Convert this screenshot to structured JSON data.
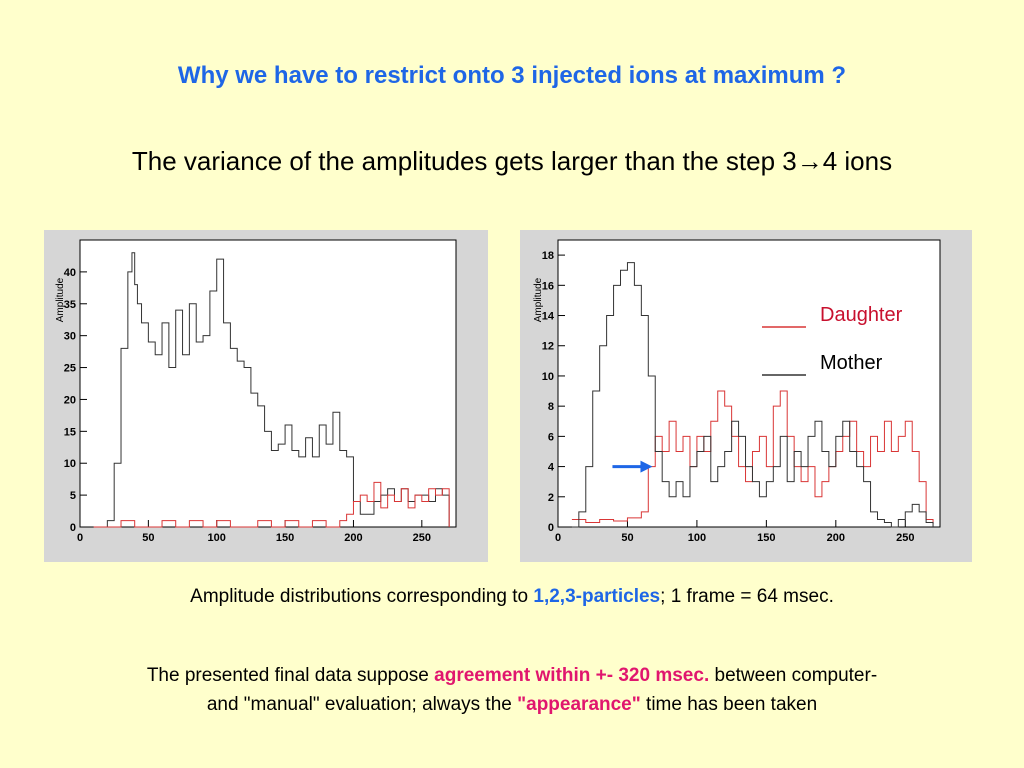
{
  "slide": {
    "title": "Why we have to restrict onto 3 injected ions at maximum ?",
    "subtitle": "The variance of the amplitudes gets larger than the step 3→4 ions",
    "caption": {
      "pre": "Amplitude distributions corresponding to ",
      "highlight": "1,2,3-particles",
      "post": "; 1 frame = 64 msec."
    },
    "note": {
      "line1_pre": "The presented final data  suppose ",
      "line1_highlight": "agreement within +- 320 msec.",
      "line1_post": " between computer-",
      "line2_pre": "and \"manual\" evaluation; always the ",
      "line2_highlight": "\"appearance\"",
      "line2_post": " time has been taken"
    }
  },
  "colors": {
    "background": "#FFFFCC",
    "title": "#1E66E6",
    "accent": "#E0166E",
    "daughter": "#D93636",
    "mother": "#333333",
    "arrow": "#1E66E6"
  },
  "chart_data": [
    {
      "type": "line",
      "ylabel": "Amplitude",
      "xlim": [
        0,
        275
      ],
      "ylim": [
        0,
        45
      ],
      "xticks": [
        0,
        50,
        100,
        150,
        200,
        250
      ],
      "yticks": [
        0,
        5,
        10,
        15,
        20,
        25,
        30,
        35,
        40
      ],
      "series": [
        {
          "color": "#333333",
          "x": [
            10,
            20,
            25,
            30,
            35,
            38,
            40,
            42,
            45,
            50,
            55,
            60,
            65,
            70,
            75,
            80,
            85,
            90,
            95,
            100,
            105,
            110,
            115,
            120,
            125,
            130,
            135,
            140,
            145,
            150,
            155,
            160,
            165,
            170,
            175,
            180,
            185,
            190,
            195,
            200,
            205,
            210,
            215,
            220,
            225,
            230,
            235,
            240,
            245,
            250,
            255,
            260,
            265,
            270
          ],
          "y": [
            0,
            1,
            10,
            28,
            40,
            43,
            38,
            35,
            32,
            29,
            27,
            32,
            25,
            34,
            27,
            35,
            29,
            30,
            37,
            42,
            32,
            28,
            26,
            25,
            21,
            19,
            15,
            12,
            13,
            16,
            12,
            11,
            14,
            11,
            16,
            13,
            18,
            12,
            11,
            4,
            2,
            2,
            4,
            5,
            6,
            4,
            6,
            4,
            5,
            5,
            4,
            6,
            5,
            0
          ]
        },
        {
          "color": "#D93636",
          "x": [
            10,
            20,
            30,
            40,
            50,
            60,
            70,
            80,
            90,
            100,
            110,
            120,
            130,
            140,
            150,
            160,
            170,
            180,
            190,
            195,
            200,
            205,
            210,
            215,
            220,
            225,
            230,
            235,
            240,
            245,
            250,
            255,
            260,
            265,
            270
          ],
          "y": [
            0,
            0,
            1,
            0,
            0,
            1,
            0,
            1,
            0,
            1,
            0,
            0,
            1,
            0,
            1,
            0,
            1,
            0,
            1,
            2,
            4,
            5,
            4,
            7,
            3,
            5,
            4,
            6,
            3,
            5,
            4,
            6,
            5,
            6,
            0
          ]
        }
      ]
    },
    {
      "type": "line",
      "ylabel": "Amplitude",
      "xlim": [
        0,
        275
      ],
      "ylim": [
        0,
        19
      ],
      "xticks": [
        0,
        50,
        100,
        150,
        200,
        250
      ],
      "yticks": [
        0,
        2,
        4,
        6,
        8,
        10,
        12,
        14,
        16,
        18
      ],
      "legend": [
        "Daughter",
        "Mother"
      ],
      "series": [
        {
          "name": "Daughter",
          "color": "#D93636",
          "x": [
            10,
            20,
            30,
            40,
            50,
            60,
            65,
            70,
            75,
            80,
            85,
            90,
            95,
            100,
            105,
            110,
            115,
            120,
            125,
            130,
            135,
            140,
            145,
            150,
            155,
            160,
            165,
            170,
            175,
            180,
            185,
            190,
            195,
            200,
            205,
            210,
            215,
            220,
            225,
            230,
            235,
            240,
            245,
            250,
            255,
            260,
            265,
            270
          ],
          "y": [
            0.5,
            0.3,
            0.5,
            0.4,
            0.6,
            1,
            4,
            6,
            5,
            7,
            5,
            6,
            4,
            6,
            5,
            7,
            9,
            8,
            6,
            4,
            3,
            5,
            6,
            4,
            8,
            9,
            6,
            4,
            3,
            4,
            2,
            3,
            4,
            5,
            6,
            7,
            5,
            4,
            6,
            5,
            7,
            5,
            6,
            7,
            5,
            3,
            0.5,
            0.2
          ]
        },
        {
          "name": "Mother",
          "color": "#333333",
          "x": [
            10,
            15,
            20,
            25,
            30,
            35,
            40,
            45,
            50,
            55,
            60,
            65,
            70,
            75,
            80,
            85,
            90,
            95,
            100,
            105,
            110,
            115,
            120,
            125,
            130,
            135,
            140,
            145,
            150,
            155,
            160,
            165,
            170,
            175,
            180,
            185,
            190,
            195,
            200,
            205,
            210,
            215,
            220,
            225,
            230,
            235,
            240,
            245,
            250,
            255,
            260,
            265,
            270
          ],
          "y": [
            0,
            1,
            4,
            9,
            12,
            14,
            16,
            17,
            17.5,
            16,
            14,
            10,
            5,
            3,
            2,
            3,
            2,
            4,
            5,
            6,
            3,
            4,
            5,
            7,
            6,
            4,
            3,
            2,
            3,
            4,
            6,
            3,
            5,
            4,
            6,
            7,
            5,
            4,
            6,
            7,
            5,
            4,
            3,
            1,
            0.5,
            0.3,
            0,
            0.5,
            1,
            1.5,
            1,
            0.3,
            0
          ]
        }
      ]
    }
  ]
}
